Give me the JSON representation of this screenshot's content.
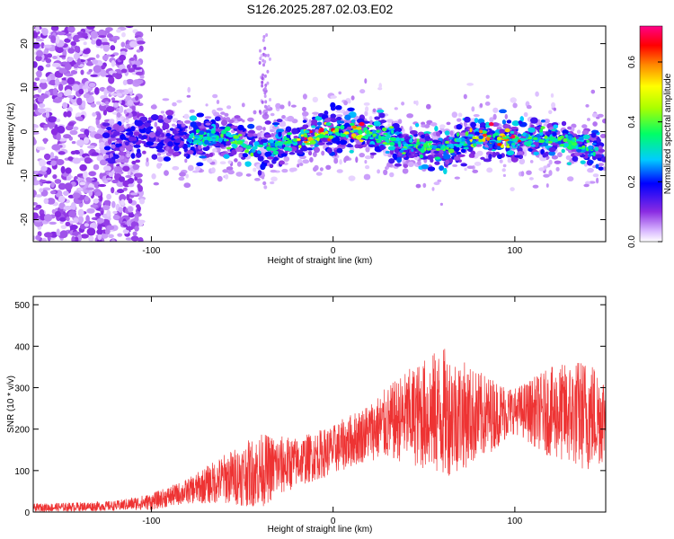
{
  "title": "S126.2025.287.02.03.E02",
  "colors": {
    "snr_line": "#ee3333",
    "axis": "#000000"
  },
  "chart_data": [
    {
      "type": "heatmap",
      "xlabel": "Height of straight line (km)",
      "ylabel": "Frequency (Hz)",
      "xlim": [
        -165,
        150
      ],
      "ylim": [
        -25,
        24
      ],
      "x_ticks": [
        -100,
        0,
        100
      ],
      "x_tick_labels": [
        "-100",
        "0",
        "100"
      ],
      "y_ticks": [
        -20,
        -10,
        0,
        10,
        20
      ],
      "y_tick_labels": [
        "-20",
        "-10",
        "0",
        "10",
        "20"
      ],
      "colorbar": {
        "label": "Normalized spectral amplitude",
        "range": [
          0,
          0.72
        ],
        "ticks": [
          0.0,
          0.2,
          0.4,
          0.6
        ],
        "tick_labels": [
          "0.0",
          "0.2",
          "0.4",
          "0.6"
        ]
      },
      "ridge": {
        "description": "energy band centered near 0 Hz",
        "points": [
          [
            -120,
            -2
          ],
          [
            -100,
            -1
          ],
          [
            -80,
            -2
          ],
          [
            -60,
            -1
          ],
          [
            -40,
            -4
          ],
          [
            -20,
            -2
          ],
          [
            0,
            0
          ],
          [
            20,
            0
          ],
          [
            40,
            -3
          ],
          [
            60,
            -4
          ],
          [
            80,
            -1
          ],
          [
            100,
            -2
          ],
          [
            120,
            -1
          ],
          [
            140,
            -4
          ]
        ],
        "peak_amplitude": 0.7
      }
    },
    {
      "type": "line",
      "xlabel": "Height of straight line (km)",
      "ylabel": "SNR (10 * v/v)",
      "xlim": [
        -165,
        150
      ],
      "ylim": [
        0,
        520
      ],
      "x_ticks": [
        -100,
        0,
        100
      ],
      "x_tick_labels": [
        "-100",
        "0",
        "100"
      ],
      "y_ticks": [
        0,
        100,
        200,
        300,
        400,
        500
      ],
      "y_tick_labels": [
        "0",
        "100",
        "200",
        "300",
        "400",
        "500"
      ],
      "envelope": [
        {
          "x": -165,
          "mean": 10,
          "amp": 10
        },
        {
          "x": -120,
          "mean": 15,
          "amp": 12
        },
        {
          "x": -100,
          "mean": 25,
          "amp": 20
        },
        {
          "x": -80,
          "mean": 50,
          "amp": 30
        },
        {
          "x": -60,
          "mean": 80,
          "amp": 60
        },
        {
          "x": -40,
          "mean": 100,
          "amp": 90
        },
        {
          "x": -20,
          "mean": 120,
          "amp": 60
        },
        {
          "x": 0,
          "mean": 150,
          "amp": 60
        },
        {
          "x": 20,
          "mean": 195,
          "amp": 70
        },
        {
          "x": 40,
          "mean": 230,
          "amp": 110
        },
        {
          "x": 60,
          "mean": 240,
          "amp": 160
        },
        {
          "x": 80,
          "mean": 230,
          "amp": 110
        },
        {
          "x": 100,
          "mean": 245,
          "amp": 55
        },
        {
          "x": 120,
          "mean": 240,
          "amp": 110
        },
        {
          "x": 140,
          "mean": 235,
          "amp": 140
        },
        {
          "x": 150,
          "mean": 230,
          "amp": 110
        }
      ]
    }
  ]
}
